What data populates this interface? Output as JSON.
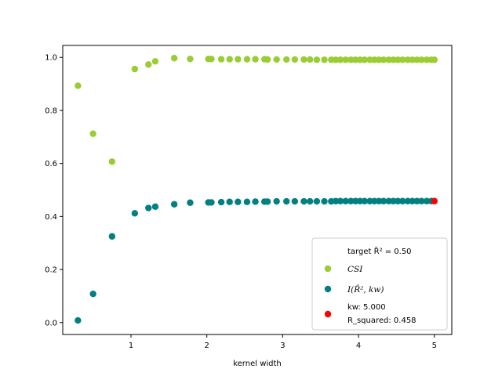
{
  "chart_data": {
    "type": "scatter",
    "title": "",
    "xlabel": "kernel width",
    "ylabel": "",
    "xlim": [
      0.1,
      5.23
    ],
    "ylim": [
      -0.045,
      1.045
    ],
    "x_ticks": [
      1,
      2,
      3,
      4,
      5
    ],
    "y_ticks": [
      0.0,
      0.2,
      0.4,
      0.6,
      0.8,
      1.0
    ],
    "x_tick_labels": [
      "1",
      "2",
      "3",
      "4",
      "5"
    ],
    "y_tick_labels": [
      "0.0",
      "0.2",
      "0.4",
      "0.6",
      "0.8",
      "1.0"
    ],
    "grid": false,
    "legend_position": "bottom-right",
    "legend": {
      "target_label": "target R̃² = 0.50",
      "kw_line1": "kw: 5.000",
      "kw_line2": "R_squared: 0.458"
    },
    "series": [
      {
        "name": "CSI",
        "color": "#9acd32",
        "points": [
          [
            0.3,
            0.893
          ],
          [
            0.5,
            0.712
          ],
          [
            0.75,
            0.607
          ],
          [
            1.05,
            0.956
          ],
          [
            1.23,
            0.973
          ],
          [
            1.32,
            0.985
          ],
          [
            1.57,
            0.997
          ],
          [
            1.78,
            0.994
          ],
          [
            2.02,
            0.994
          ],
          [
            2.06,
            0.994
          ],
          [
            2.19,
            0.993
          ],
          [
            2.3,
            0.993
          ],
          [
            2.41,
            0.993
          ],
          [
            2.53,
            0.993
          ],
          [
            2.64,
            0.993
          ],
          [
            2.76,
            0.993
          ],
          [
            2.8,
            0.992
          ],
          [
            2.92,
            0.992
          ],
          [
            3.05,
            0.992
          ],
          [
            3.16,
            0.992
          ],
          [
            3.28,
            0.992
          ],
          [
            3.36,
            0.992
          ],
          [
            3.45,
            0.991
          ],
          [
            3.55,
            0.991
          ],
          [
            3.64,
            0.991
          ],
          [
            3.7,
            0.991
          ],
          [
            3.76,
            0.991
          ],
          [
            3.83,
            0.991
          ],
          [
            3.9,
            0.991
          ],
          [
            3.96,
            0.991
          ],
          [
            4.02,
            0.991
          ],
          [
            4.08,
            0.991
          ],
          [
            4.15,
            0.991
          ],
          [
            4.21,
            0.991
          ],
          [
            4.27,
            0.991
          ],
          [
            4.33,
            0.991
          ],
          [
            4.4,
            0.991
          ],
          [
            4.46,
            0.991
          ],
          [
            4.52,
            0.991
          ],
          [
            4.58,
            0.991
          ],
          [
            4.65,
            0.991
          ],
          [
            4.71,
            0.991
          ],
          [
            4.77,
            0.991
          ],
          [
            4.83,
            0.991
          ],
          [
            4.9,
            0.991
          ],
          [
            4.96,
            0.991
          ],
          [
            5.0,
            0.991
          ]
        ]
      },
      {
        "name": "I(R̃², kw)",
        "color": "#008080",
        "points": [
          [
            0.3,
            0.008
          ],
          [
            0.5,
            0.108
          ],
          [
            0.75,
            0.325
          ],
          [
            1.05,
            0.412
          ],
          [
            1.23,
            0.432
          ],
          [
            1.32,
            0.437
          ],
          [
            1.57,
            0.446
          ],
          [
            1.78,
            0.452
          ],
          [
            2.02,
            0.453
          ],
          [
            2.06,
            0.453
          ],
          [
            2.19,
            0.454
          ],
          [
            2.3,
            0.455
          ],
          [
            2.41,
            0.455
          ],
          [
            2.53,
            0.455
          ],
          [
            2.64,
            0.456
          ],
          [
            2.76,
            0.456
          ],
          [
            2.8,
            0.456
          ],
          [
            2.92,
            0.457
          ],
          [
            3.05,
            0.457
          ],
          [
            3.16,
            0.457
          ],
          [
            3.28,
            0.457
          ],
          [
            3.36,
            0.457
          ],
          [
            3.45,
            0.457
          ],
          [
            3.55,
            0.457
          ],
          [
            3.64,
            0.457
          ],
          [
            3.7,
            0.458
          ],
          [
            3.76,
            0.458
          ],
          [
            3.83,
            0.458
          ],
          [
            3.9,
            0.458
          ],
          [
            3.96,
            0.458
          ],
          [
            4.02,
            0.458
          ],
          [
            4.08,
            0.458
          ],
          [
            4.15,
            0.458
          ],
          [
            4.21,
            0.458
          ],
          [
            4.27,
            0.458
          ],
          [
            4.33,
            0.458
          ],
          [
            4.4,
            0.458
          ],
          [
            4.46,
            0.458
          ],
          [
            4.52,
            0.458
          ],
          [
            4.58,
            0.458
          ],
          [
            4.65,
            0.458
          ],
          [
            4.71,
            0.458
          ],
          [
            4.77,
            0.458
          ],
          [
            4.83,
            0.458
          ],
          [
            4.9,
            0.458
          ],
          [
            4.96,
            0.458
          ]
        ]
      },
      {
        "name": "kw: 5.000 R_squared: 0.458",
        "color": "#ff0000",
        "points": [
          [
            5.0,
            0.458
          ]
        ]
      }
    ]
  }
}
